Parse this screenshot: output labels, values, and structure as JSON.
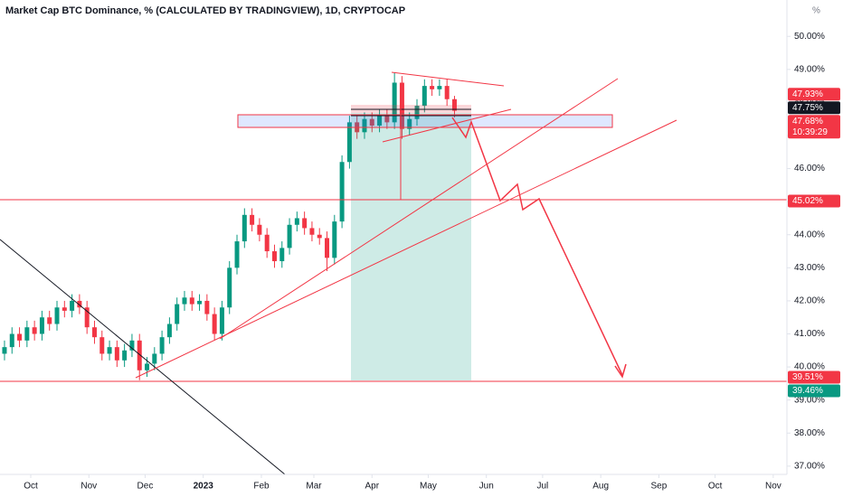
{
  "chart_data": {
    "type": "candlestick",
    "title": "Market Cap BTC Dominance, % (CALCULATED BY TRADINGVIEW), 1D, CRYPTOCAP",
    "unit": "%",
    "x": [
      -14,
      -10,
      -6,
      -2,
      2,
      6,
      10,
      14,
      18,
      22,
      26,
      30,
      34,
      38,
      42,
      46,
      50,
      54,
      58,
      62,
      66,
      70,
      74,
      78,
      82,
      86,
      90,
      94,
      98,
      102,
      106,
      110,
      114,
      118,
      122,
      126,
      130,
      134,
      138,
      142,
      146,
      150,
      154,
      158,
      162,
      166,
      170,
      174,
      178,
      182,
      186,
      190,
      194,
      198,
      202,
      206,
      210,
      214,
      218,
      222,
      226
    ],
    "open": [
      40.4,
      40.6,
      41.0,
      40.8,
      41.2,
      41.0,
      41.5,
      41.3,
      41.8,
      41.7,
      42.0,
      41.8,
      41.2,
      40.9,
      40.4,
      40.6,
      40.2,
      40.5,
      40.8,
      39.9,
      40.1,
      40.4,
      40.9,
      41.3,
      41.9,
      42.1,
      41.9,
      42.0,
      41.6,
      41.0,
      41.8,
      43.0,
      43.8,
      44.6,
      44.3,
      44.0,
      43.5,
      43.2,
      43.6,
      44.3,
      44.5,
      44.2,
      44.0,
      43.9,
      43.3,
      44.4,
      46.2,
      47.4,
      47.1,
      47.5,
      47.3,
      47.6,
      47.4,
      48.6,
      47.2,
      47.5,
      47.9,
      48.5,
      48.4,
      48.5,
      48.1
    ],
    "high": [
      40.8,
      41.2,
      41.2,
      41.4,
      41.4,
      41.7,
      41.7,
      42.0,
      42.0,
      42.2,
      42.2,
      42.0,
      41.4,
      41.1,
      40.8,
      40.8,
      40.7,
      41.0,
      41.0,
      40.3,
      40.6,
      41.1,
      41.5,
      42.1,
      42.3,
      42.3,
      42.2,
      42.2,
      41.8,
      42.0,
      43.2,
      44.0,
      44.8,
      44.8,
      44.5,
      44.2,
      43.7,
      43.8,
      44.5,
      44.7,
      44.7,
      44.4,
      44.2,
      44.1,
      44.6,
      46.4,
      47.6,
      47.6,
      47.7,
      47.7,
      47.8,
      47.8,
      48.9,
      48.8,
      47.7,
      48.1,
      48.7,
      48.7,
      48.7,
      48.7,
      48.2
    ],
    "low": [
      40.2,
      40.4,
      40.6,
      40.6,
      40.8,
      40.8,
      41.1,
      41.1,
      41.5,
      41.5,
      41.6,
      41.0,
      40.7,
      40.2,
      40.2,
      40.0,
      40.0,
      40.3,
      39.6,
      39.7,
      39.9,
      40.2,
      40.7,
      41.1,
      41.7,
      41.7,
      41.7,
      41.4,
      40.8,
      40.8,
      41.6,
      42.8,
      43.6,
      44.1,
      43.8,
      43.3,
      43.0,
      43.0,
      43.4,
      44.1,
      44.0,
      43.8,
      43.7,
      42.9,
      43.1,
      44.2,
      46.0,
      46.9,
      46.9,
      47.1,
      47.1,
      47.2,
      47.2,
      46.9,
      47.0,
      47.3,
      47.7,
      48.2,
      48.2,
      47.9,
      47.55
    ],
    "close": [
      40.6,
      41.0,
      40.8,
      41.2,
      41.0,
      41.5,
      41.3,
      41.8,
      41.7,
      42.0,
      41.8,
      41.2,
      40.9,
      40.4,
      40.6,
      40.2,
      40.5,
      40.8,
      39.9,
      40.1,
      40.4,
      40.9,
      41.3,
      41.9,
      42.1,
      41.9,
      42.0,
      41.6,
      41.0,
      41.8,
      43.0,
      43.8,
      44.6,
      44.3,
      44.0,
      43.5,
      43.2,
      43.6,
      44.3,
      44.5,
      44.2,
      44.0,
      43.9,
      43.3,
      44.4,
      46.2,
      47.4,
      47.1,
      47.5,
      47.3,
      47.6,
      47.4,
      48.6,
      47.2,
      47.5,
      47.9,
      48.5,
      48.4,
      48.5,
      48.1,
      47.75
    ],
    "up_color": "#089981",
    "down_color": "#f23645",
    "xlim": [
      -16.4,
      403.3
    ],
    "xticks": [
      {
        "value": 0,
        "label": "Oct"
      },
      {
        "value": 31,
        "label": "Nov"
      },
      {
        "value": 61,
        "label": "Dec"
      },
      {
        "value": 92,
        "label": "2023"
      },
      {
        "value": 123,
        "label": "Feb"
      },
      {
        "value": 151,
        "label": "Mar"
      },
      {
        "value": 182,
        "label": "Apr"
      },
      {
        "value": 212,
        "label": "May"
      },
      {
        "value": 243,
        "label": "Jun"
      },
      {
        "value": 273,
        "label": "Jul"
      },
      {
        "value": 304,
        "label": "Aug"
      },
      {
        "value": 335,
        "label": "Sep"
      },
      {
        "value": 365,
        "label": "Oct"
      },
      {
        "value": 396,
        "label": "Nov"
      }
    ],
    "ylim": [
      36.75,
      51.1
    ],
    "yticks": [
      {
        "value": 50,
        "label": "50.00%"
      },
      {
        "value": 49,
        "label": "49.00%"
      },
      {
        "value": 48,
        "label": "48.00%"
      },
      {
        "value": 47,
        "label": "47.00%"
      },
      {
        "value": 46,
        "label": "46.00%"
      },
      {
        "value": 45,
        "label": "45.00%"
      },
      {
        "value": 44,
        "label": "44.00%"
      },
      {
        "value": 43,
        "label": "43.00%"
      },
      {
        "value": 42,
        "label": "42.00%"
      },
      {
        "value": 41,
        "label": "41.00%"
      },
      {
        "value": 40,
        "label": "40.00%"
      },
      {
        "value": 39,
        "label": "39.00%"
      },
      {
        "value": 38,
        "label": "38.00%"
      },
      {
        "value": 37,
        "label": "37.00%"
      }
    ],
    "price_labels": [
      {
        "value": 47.93,
        "label": "47.93%",
        "color": "#f23645"
      },
      {
        "value": 47.75,
        "label": "47.75%",
        "color": "#131722"
      },
      {
        "value": 47.68,
        "label": "47.68%",
        "time": "10:39:29",
        "color": "#f23645"
      },
      {
        "value": 45.02,
        "label": "45.02%",
        "color": "#f23645"
      },
      {
        "value": 39.51,
        "label": "39.51%",
        "color": "#f23645"
      },
      {
        "value": 39.46,
        "label": "39.46%",
        "color": "#089981"
      }
    ]
  }
}
